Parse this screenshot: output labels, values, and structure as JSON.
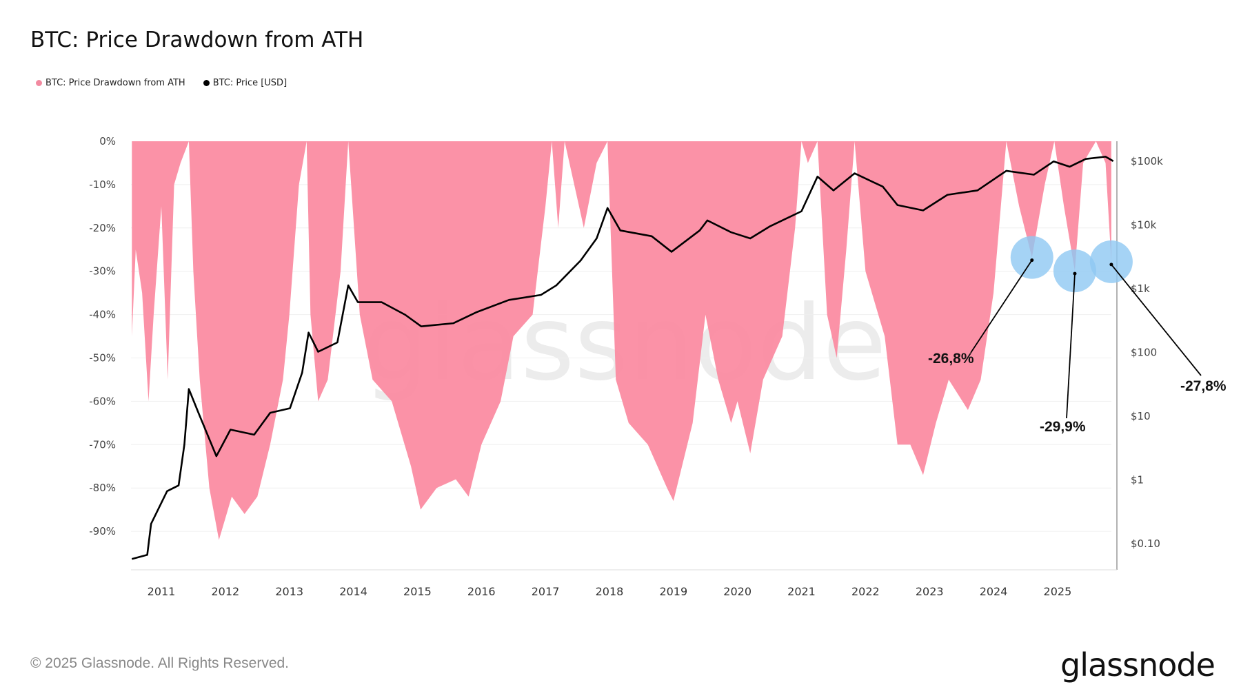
{
  "title": "BTC: Price Drawdown from ATH",
  "footer": "© 2025 Glassnode. All Rights Reserved.",
  "logo": "glassnode",
  "watermark": "glassnode",
  "colors": {
    "drawdown": "#fb8ca2",
    "price": "#000000",
    "highlight": "#8ec8f2"
  },
  "chart_data": {
    "type": "area",
    "title": "BTC: Price Drawdown from ATH",
    "legend": {
      "placement": "top-left",
      "entries": [
        {
          "name": "BTC: Price Drawdown from ATH",
          "color": "#f28aa0"
        },
        {
          "name": "BTC: Price [USD]",
          "color": "#000000"
        }
      ]
    },
    "x_ticks": [
      "2011",
      "2012",
      "2013",
      "2014",
      "2015",
      "2016",
      "2017",
      "2018",
      "2019",
      "2020",
      "2021",
      "2022",
      "2023",
      "2024",
      "2025"
    ],
    "y_left_ticks": [
      "0%",
      "-10%",
      "-20%",
      "-30%",
      "-40%",
      "-50%",
      "-60%",
      "-70%",
      "-80%",
      "-90%"
    ],
    "y_left_range": [
      -100,
      0
    ],
    "y_right_ticks": [
      "$100k",
      "$10k",
      "$1k",
      "$100",
      "$10",
      "$1",
      "$0.10"
    ],
    "y_right_scale": "log",
    "grid": true,
    "series": [
      {
        "name": "BTC: Price Drawdown from ATH",
        "axis": "left",
        "type": "area",
        "x": [
          2010.54,
          2010.6,
          2010.7,
          2010.8,
          2010.88,
          2011.0,
          2011.1,
          2011.2,
          2011.3,
          2011.43,
          2011.5,
          2011.6,
          2011.75,
          2011.9,
          2012.1,
          2012.3,
          2012.5,
          2012.7,
          2012.9,
          2013.0,
          2013.15,
          2013.27,
          2013.33,
          2013.45,
          2013.6,
          2013.8,
          2013.92,
          2014.1,
          2014.3,
          2014.6,
          2014.9,
          2015.05,
          2015.3,
          2015.6,
          2015.8,
          2016.0,
          2016.3,
          2016.5,
          2016.8,
          2017.0,
          2017.1,
          2017.2,
          2017.3,
          2017.6,
          2017.8,
          2017.97,
          2018.1,
          2018.3,
          2018.6,
          2018.9,
          2019.0,
          2019.3,
          2019.5,
          2019.7,
          2019.9,
          2020.0,
          2020.2,
          2020.4,
          2020.7,
          2020.9,
          2021.0,
          2021.1,
          2021.25,
          2021.4,
          2021.55,
          2021.7,
          2021.83,
          2022.0,
          2022.3,
          2022.5,
          2022.7,
          2022.9,
          2023.1,
          2023.3,
          2023.6,
          2023.8,
          2024.0,
          2024.2,
          2024.4,
          2024.6,
          2024.8,
          2024.95,
          2025.1,
          2025.27,
          2025.4,
          2025.6,
          2025.75,
          2025.84
        ],
        "values": [
          -45,
          -25,
          -35,
          -60,
          -40,
          -15,
          -55,
          -10,
          -5,
          0,
          -30,
          -55,
          -80,
          -92,
          -82,
          -86,
          -82,
          -70,
          -55,
          -40,
          -10,
          0,
          -40,
          -60,
          -55,
          -30,
          0,
          -40,
          -55,
          -60,
          -75,
          -85,
          -80,
          -78,
          -82,
          -70,
          -60,
          -45,
          -40,
          -15,
          0,
          -20,
          0,
          -20,
          -5,
          0,
          -55,
          -65,
          -70,
          -80,
          -83,
          -65,
          -40,
          -55,
          -65,
          -60,
          -72,
          -55,
          -45,
          -20,
          0,
          -5,
          0,
          -40,
          -50,
          -25,
          0,
          -30,
          -45,
          -70,
          -70,
          -77,
          -65,
          -55,
          -62,
          -55,
          -35,
          0,
          -15,
          -26.8,
          -10,
          0,
          -15,
          -29.9,
          -5,
          0,
          -5,
          -27.8
        ]
      },
      {
        "name": "BTC: Price [USD]",
        "axis": "right",
        "type": "line",
        "x": [
          2010.54,
          2010.78,
          2010.84,
          2011.09,
          2011.27,
          2011.36,
          2011.43,
          2011.58,
          2011.86,
          2012.08,
          2012.45,
          2012.7,
          2013.01,
          2013.2,
          2013.3,
          2013.45,
          2013.75,
          2013.92,
          2014.07,
          2014.44,
          2014.81,
          2015.06,
          2015.56,
          2015.93,
          2016.43,
          2016.93,
          2017.17,
          2017.55,
          2017.8,
          2017.97,
          2018.17,
          2018.66,
          2018.97,
          2019.41,
          2019.53,
          2019.9,
          2020.2,
          2020.5,
          2021.0,
          2021.25,
          2021.5,
          2021.83,
          2022.27,
          2022.5,
          2022.9,
          2023.28,
          2023.75,
          2024.2,
          2024.63,
          2024.94,
          2025.19,
          2025.44,
          2025.75,
          2025.87
        ],
        "values": [
          0.056,
          0.065,
          0.2,
          0.65,
          0.8,
          3.5,
          26,
          11,
          2.3,
          6,
          5,
          11,
          13,
          47,
          200,
          100,
          140,
          1100,
          600,
          600,
          380,
          250,
          280,
          420,
          650,
          780,
          1100,
          2700,
          6000,
          18000,
          8000,
          6500,
          3700,
          8000,
          11500,
          7500,
          6000,
          9200,
          16000,
          56000,
          34000,
          63000,
          39000,
          20000,
          16500,
          29000,
          34000,
          69000,
          60000,
          97000,
          80000,
          106000,
          115000,
          98000
        ]
      }
    ],
    "annotations": [
      {
        "label": "-26,8%",
        "x": 2024.6,
        "value": -26.8
      },
      {
        "label": "-29,9%",
        "x": 2025.27,
        "value": -29.9
      },
      {
        "label": "-27,8%",
        "x": 2025.84,
        "value": -27.8
      }
    ]
  }
}
